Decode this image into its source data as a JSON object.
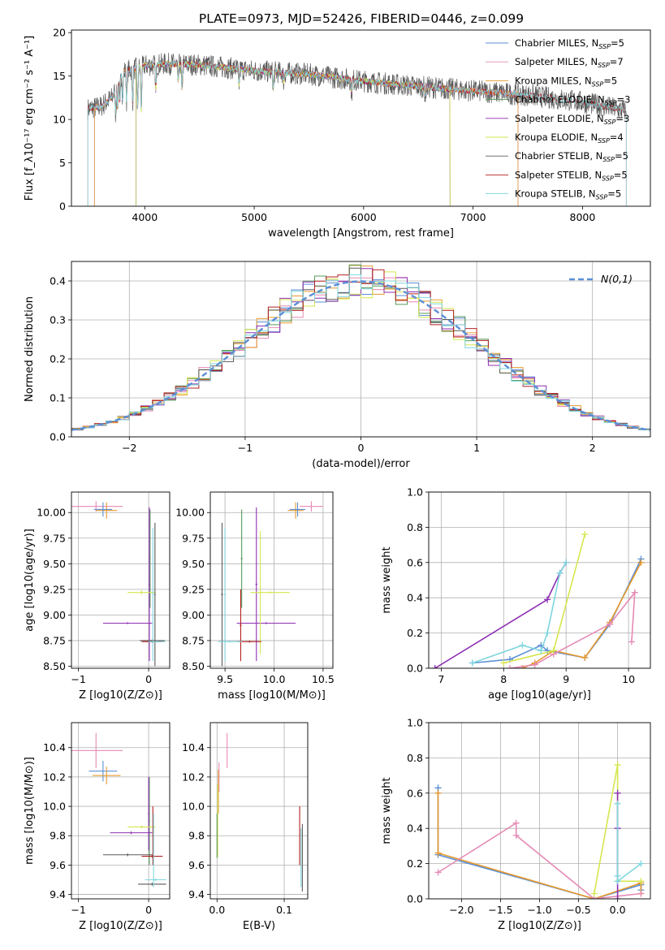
{
  "figure_title": "PLATE=0973, MJD=52426, FIBERID=0446, z=0.099",
  "colors": {
    "Chabrier MILES": "#5b8fd6",
    "Salpeter MILES": "#e68ab5",
    "Kroupa MILES": "#e69a2e",
    "Chabrier ELODIE": "#5a9a5a",
    "Salpeter ELODIE": "#8e2fb3",
    "Kroupa ELODIE": "#d6e64e",
    "Chabrier STELIB": "#5a5a5a",
    "Salpeter STELIB": "#b52020",
    "Kroupa STELIB": "#7fd6de"
  },
  "chart_data": [
    {
      "id": "spectrum",
      "type": "line",
      "xlabel": "wavelength [Angstrom, rest frame]",
      "ylabel": "Flux [f_λ10⁻¹⁷ erg cm⁻² s⁻¹ A⁻¹]",
      "xlim": [
        3330,
        8620
      ],
      "ylim": [
        0,
        20.3
      ],
      "xticks": [
        4000,
        5000,
        6000,
        7000,
        8000
      ],
      "yticks": [
        0,
        5,
        10,
        15,
        20
      ],
      "grid": false,
      "legend_position": "top-right",
      "legend": [
        "Chabrier MILES, N_SSP=5",
        "Salpeter MILES, N_SSP=7",
        "Kroupa MILES, N_SSP=5",
        "Chabrier ELODIE, N_SSP=3",
        "Salpeter ELODIE, N_SSP=3",
        "Kroupa ELODIE, N_SSP=4",
        "Chabrier STELIB, N_SSP=5",
        "Salpeter STELIB, N_SSP=5",
        "Kroupa STELIB, N_SSP=5"
      ],
      "legend_main": [
        "Chabrier MILES, N",
        "Salpeter MILES, N",
        "Kroupa MILES, N",
        "Chabrier ELODIE, N",
        "Salpeter ELODIE, N",
        "Kroupa ELODIE, N",
        "Chabrier STELIB, N",
        "Salpeter STELIB, N",
        "Kroupa STELIB, N"
      ],
      "legend_sub": [
        "SSP",
        "SSP",
        "SSP",
        "SSP",
        "SSP",
        "SSP",
        "SSP",
        "SSP",
        "SSP"
      ],
      "legend_tail": [
        "=5",
        "=7",
        "=5",
        "=3",
        "=3",
        "=4",
        "=5",
        "=5",
        "=5"
      ],
      "continuum": [
        [
          3480,
          11.2
        ],
        [
          3600,
          11.5
        ],
        [
          3700,
          12.5
        ],
        [
          3800,
          15.5
        ],
        [
          3900,
          15.8
        ],
        [
          4000,
          16.2
        ],
        [
          4200,
          16.4
        ],
        [
          4500,
          16.3
        ],
        [
          5000,
          15.6
        ],
        [
          5500,
          15.2
        ],
        [
          6000,
          14.4
        ],
        [
          6500,
          13.8
        ],
        [
          7000,
          13.3
        ],
        [
          7500,
          12.8
        ],
        [
          8000,
          12.0
        ],
        [
          8400,
          11.0
        ]
      ]
    },
    {
      "id": "residuals",
      "type": "histogram",
      "xlabel": "(data-model)/error",
      "ylabel": "Normed distribution",
      "xlim": [
        -2.5,
        2.5
      ],
      "ylim": [
        0,
        0.45
      ],
      "xticks": [
        -2,
        -1,
        0,
        1,
        2
      ],
      "yticks": [
        0.0,
        0.1,
        0.2,
        0.3,
        0.4
      ],
      "grid": true,
      "legend_position": "top-right",
      "reference_curve": "N(0,1)",
      "bin_width": 0.1,
      "bin_start": -2.5,
      "series_order": [
        "Chabrier MILES",
        "Salpeter MILES",
        "Kroupa MILES",
        "Chabrier ELODIE",
        "Salpeter ELODIE",
        "Kroupa ELODIE",
        "Chabrier STELIB",
        "Salpeter STELIB",
        "Kroupa STELIB"
      ]
    },
    {
      "id": "age-Z",
      "type": "errorbar",
      "xlabel": "Z [log10(Z/Z⊙)]",
      "ylabel": "age [log10(age/yr)]",
      "xlim": [
        -1.1,
        0.3
      ],
      "ylim": [
        8.48,
        10.2
      ],
      "xticks": [
        -1,
        0
      ],
      "yticks": [
        8.5,
        8.75,
        9.0,
        9.25,
        9.5,
        9.75,
        10.0
      ],
      "grid": true,
      "points": [
        {
          "series": "Salpeter MILES",
          "x": -0.75,
          "y": 10.06,
          "dx": 0.38,
          "dy": 0.05
        },
        {
          "series": "Kroupa MILES",
          "x": -0.6,
          "y": 10.02,
          "dx": 0.15,
          "dy": 0.08
        },
        {
          "series": "Chabrier MILES",
          "x": -0.65,
          "y": 10.03,
          "dx": 0.13,
          "dy": 0.07
        },
        {
          "series": "Chabrier ELODIE",
          "x": 0.02,
          "y": 9.55,
          "dx": 0.01,
          "dy": 0.48
        },
        {
          "series": "Salpeter ELODIE",
          "x": 0.01,
          "y": 9.3,
          "dx": 0.01,
          "dy": 0.75
        },
        {
          "series": "Kroupa ELODIE",
          "x": -0.1,
          "y": 9.22,
          "dx": 0.2,
          "dy": 0.02
        },
        {
          "series": "Salpeter ELODIE",
          "x": -0.3,
          "y": 8.92,
          "dx": 0.35,
          "dy": 0.01
        },
        {
          "series": "Chabrier STELIB",
          "x": 0.09,
          "y": 9.2,
          "dx": 0.01,
          "dy": 0.7
        },
        {
          "series": "Chabrier STELIB",
          "x": 0.05,
          "y": 8.75,
          "dx": 0.18,
          "dy": 0.01
        },
        {
          "series": "Salpeter STELIB",
          "x": 0.05,
          "y": 8.74,
          "dx": 0.15,
          "dy": 0.01
        },
        {
          "series": "Kroupa STELIB",
          "x": 0.06,
          "y": 9.2,
          "dx": 0.01,
          "dy": 0.65
        },
        {
          "series": "Kroupa STELIB",
          "x": 0.12,
          "y": 8.74,
          "dx": 0.12,
          "dy": 0.01
        }
      ]
    },
    {
      "id": "age-mass",
      "type": "errorbar",
      "xlabel": "mass [log10(M/M⊙)]",
      "ylabel": "",
      "xlim": [
        9.35,
        10.6
      ],
      "ylim": [
        8.48,
        10.2
      ],
      "xticks": [
        9.5,
        10.0,
        10.5
      ],
      "yticks": [
        8.5,
        8.75,
        9.0,
        9.25,
        9.5,
        9.75,
        10.0
      ],
      "grid": true,
      "points": [
        {
          "series": "Salpeter MILES",
          "x": 10.38,
          "y": 10.06,
          "dx": 0.12,
          "dy": 0.05
        },
        {
          "series": "Kroupa MILES",
          "x": 10.22,
          "y": 10.02,
          "dx": 0.08,
          "dy": 0.08
        },
        {
          "series": "Chabrier MILES",
          "x": 10.24,
          "y": 10.03,
          "dx": 0.08,
          "dy": 0.07
        },
        {
          "series": "Chabrier ELODIE",
          "x": 9.67,
          "y": 9.55,
          "dx": 0.01,
          "dy": 0.48
        },
        {
          "series": "Salpeter ELODIE",
          "x": 9.82,
          "y": 9.3,
          "dx": 0.01,
          "dy": 0.75
        },
        {
          "series": "Salpeter ELODIE",
          "x": 9.92,
          "y": 8.92,
          "dx": 0.3,
          "dy": 0.01
        },
        {
          "series": "Kroupa ELODIE",
          "x": 9.86,
          "y": 9.22,
          "dx": 0.01,
          "dy": 0.6
        },
        {
          "series": "Kroupa ELODIE",
          "x": 9.96,
          "y": 9.22,
          "dx": 0.2,
          "dy": 0.01
        },
        {
          "series": "Chabrier STELIB",
          "x": 9.47,
          "y": 9.2,
          "dx": 0.01,
          "dy": 0.7
        },
        {
          "series": "Salpeter STELIB",
          "x": 9.66,
          "y": 8.9,
          "dx": 0.01,
          "dy": 0.35
        },
        {
          "series": "Salpeter STELIB",
          "x": 9.75,
          "y": 8.74,
          "dx": 0.12,
          "dy": 0.01
        },
        {
          "series": "Kroupa STELIB",
          "x": 9.5,
          "y": 9.2,
          "dx": 0.01,
          "dy": 0.65
        },
        {
          "series": "Kroupa STELIB",
          "x": 9.55,
          "y": 8.74,
          "dx": 0.12,
          "dy": 0.01
        }
      ]
    },
    {
      "id": "weight-age",
      "type": "line",
      "xlabel": "age [log10(age/yr)]",
      "ylabel": "mass weight",
      "xlim": [
        6.8,
        10.35
      ],
      "ylim": [
        0,
        1.0
      ],
      "xticks": [
        7,
        8,
        9,
        10
      ],
      "yticks": [
        0.0,
        0.2,
        0.4,
        0.6,
        0.8,
        1.0
      ],
      "grid": true,
      "series": [
        {
          "series": "Chabrier MILES",
          "x": [
            7.5,
            8.1,
            8.6,
            8.7,
            9.3,
            9.7,
            10.2
          ],
          "y": [
            0.03,
            0.05,
            0.13,
            0.1,
            0.06,
            0.25,
            0.62
          ]
        },
        {
          "series": "Kroupa MILES",
          "x": [
            8.3,
            8.5,
            8.8,
            9.3,
            9.7,
            10.2
          ],
          "y": [
            0.0,
            0.03,
            0.1,
            0.06,
            0.26,
            0.6
          ]
        },
        {
          "series": "Salpeter MILES",
          "x": [
            8.1,
            8.5,
            8.8,
            9.7,
            10.1,
            10.05
          ],
          "y": [
            0.0,
            0.02,
            0.08,
            0.25,
            0.43,
            0.15
          ]
        },
        {
          "series": "Salpeter ELODIE",
          "x": [
            6.9,
            8.7,
            8.9,
            9.0
          ],
          "y": [
            0.0,
            0.39,
            0.54,
            0.6
          ]
        },
        {
          "series": "Kroupa ELODIE",
          "x": [
            8.0,
            8.8,
            9.3
          ],
          "y": [
            0.03,
            0.1,
            0.76
          ]
        },
        {
          "series": "Kroupa STELIB",
          "x": [
            7.5,
            8.3,
            8.6,
            8.7,
            8.9,
            9.0
          ],
          "y": [
            0.03,
            0.13,
            0.1,
            0.2,
            0.54,
            0.6
          ]
        }
      ]
    },
    {
      "id": "mass-Z",
      "type": "errorbar",
      "xlabel": "Z [log10(Z/Z⊙)]",
      "ylabel": "mass [log10(M/M⊙)]",
      "xlim": [
        -1.1,
        0.3
      ],
      "ylim": [
        9.37,
        10.57
      ],
      "xticks": [
        -1,
        0
      ],
      "yticks": [
        9.4,
        9.6,
        9.8,
        10.0,
        10.2,
        10.4
      ],
      "grid": true,
      "points": [
        {
          "series": "Salpeter MILES",
          "x": -0.75,
          "y": 10.38,
          "dx": 0.38,
          "dy": 0.12
        },
        {
          "series": "Chabrier MILES",
          "x": -0.65,
          "y": 10.24,
          "dx": 0.2,
          "dy": 0.07
        },
        {
          "series": "Kroupa MILES",
          "x": -0.6,
          "y": 10.21,
          "dx": 0.2,
          "dy": 0.06
        },
        {
          "series": "Chabrier ELODIE",
          "x": 0.01,
          "y": 9.9,
          "dx": 0.01,
          "dy": 0.3
        },
        {
          "series": "Salpeter ELODIE",
          "x": 0.0,
          "y": 9.95,
          "dx": 0.01,
          "dy": 0.25
        },
        {
          "series": "Salpeter ELODIE",
          "x": -0.25,
          "y": 9.82,
          "dx": 0.3,
          "dy": 0.01
        },
        {
          "series": "Kroupa ELODIE",
          "x": -0.1,
          "y": 9.86,
          "dx": 0.2,
          "dy": 0.01
        },
        {
          "series": "Chabrier STELIB",
          "x": -0.3,
          "y": 9.67,
          "dx": 0.35,
          "dy": 0.01
        },
        {
          "series": "Salpeter STELIB",
          "x": 0.06,
          "y": 9.8,
          "dx": 0.01,
          "dy": 0.2
        },
        {
          "series": "Salpeter STELIB",
          "x": 0.05,
          "y": 9.66,
          "dx": 0.15,
          "dy": 0.01
        },
        {
          "series": "Kroupa STELIB",
          "x": 0.1,
          "y": 9.5,
          "dx": 0.15,
          "dy": 0.01
        },
        {
          "series": "Chabrier STELIB",
          "x": 0.05,
          "y": 9.47,
          "dx": 0.2,
          "dy": 0.01
        },
        {
          "series": "Kroupa STELIB",
          "x": 0.07,
          "y": 9.7,
          "dx": 0.01,
          "dy": 0.25
        }
      ]
    },
    {
      "id": "mass-EBV",
      "type": "errorbar",
      "xlabel": "E(B-V)",
      "ylabel": "",
      "xlim": [
        -0.01,
        0.135
      ],
      "ylim": [
        9.37,
        10.57
      ],
      "xticks": [
        0.0,
        0.1
      ],
      "yticks": [
        9.4,
        9.6,
        9.8,
        10.0,
        10.2,
        10.4
      ],
      "grid": true,
      "points": [
        {
          "series": "Salpeter MILES",
          "x": 0.015,
          "y": 10.38,
          "dx": 0.0,
          "dy": 0.12
        },
        {
          "series": "Salpeter MILES",
          "x": 0.003,
          "y": 10.2,
          "dx": 0.0,
          "dy": 0.1
        },
        {
          "series": "Kroupa MILES",
          "x": 0.002,
          "y": 10.1,
          "dx": 0.0,
          "dy": 0.15
        },
        {
          "series": "Kroupa ELODIE",
          "x": 0.001,
          "y": 9.9,
          "dx": 0.0,
          "dy": 0.25
        },
        {
          "series": "Chabrier ELODIE",
          "x": 0.0,
          "y": 9.8,
          "dx": 0.0,
          "dy": 0.15
        },
        {
          "series": "Salpeter STELIB",
          "x": 0.123,
          "y": 9.8,
          "dx": 0.0,
          "dy": 0.2
        },
        {
          "series": "Chabrier STELIB",
          "x": 0.127,
          "y": 9.65,
          "dx": 0.0,
          "dy": 0.23
        },
        {
          "series": "Kroupa STELIB",
          "x": 0.125,
          "y": 9.65,
          "dx": 0.0,
          "dy": 0.2
        }
      ]
    },
    {
      "id": "weight-Z",
      "type": "line",
      "xlabel": "Z [log10(Z/Z⊙)]",
      "ylabel": "mass weight",
      "xlim": [
        -2.42,
        0.42
      ],
      "ylim": [
        0,
        1.0
      ],
      "xticks": [
        -2.0,
        -1.5,
        -1.0,
        -0.5,
        0.0
      ],
      "yticks": [
        0.0,
        0.2,
        0.4,
        0.6,
        0.8,
        1.0
      ],
      "grid": true,
      "series": [
        {
          "series": "Chabrier MILES",
          "x": [
            -2.3,
            -2.3,
            -0.3,
            0.3,
            0.3
          ],
          "y": [
            0.63,
            0.25,
            0.0,
            0.08,
            0.05
          ]
        },
        {
          "series": "Kroupa MILES",
          "x": [
            -2.3,
            -2.3,
            -0.3,
            0.3,
            0.3
          ],
          "y": [
            0.6,
            0.26,
            0.0,
            0.09,
            0.03
          ]
        },
        {
          "series": "Salpeter MILES",
          "x": [
            -2.3,
            -1.3,
            -1.3,
            -0.3,
            0.3
          ],
          "y": [
            0.15,
            0.43,
            0.36,
            0.0,
            0.03
          ]
        },
        {
          "series": "Kroupa ELODIE",
          "x": [
            -0.3,
            0.0,
            0.0,
            0.3
          ],
          "y": [
            0.03,
            0.76,
            0.1,
            0.1
          ]
        },
        {
          "series": "Salpeter ELODIE",
          "x": [
            0.0,
            0.0,
            0.0
          ],
          "y": [
            0.6,
            0.4,
            0.0
          ]
        },
        {
          "series": "Kroupa STELIB",
          "x": [
            0.0,
            0.0,
            0.0,
            0.3
          ],
          "y": [
            0.54,
            0.13,
            0.1,
            0.2
          ]
        }
      ]
    }
  ]
}
